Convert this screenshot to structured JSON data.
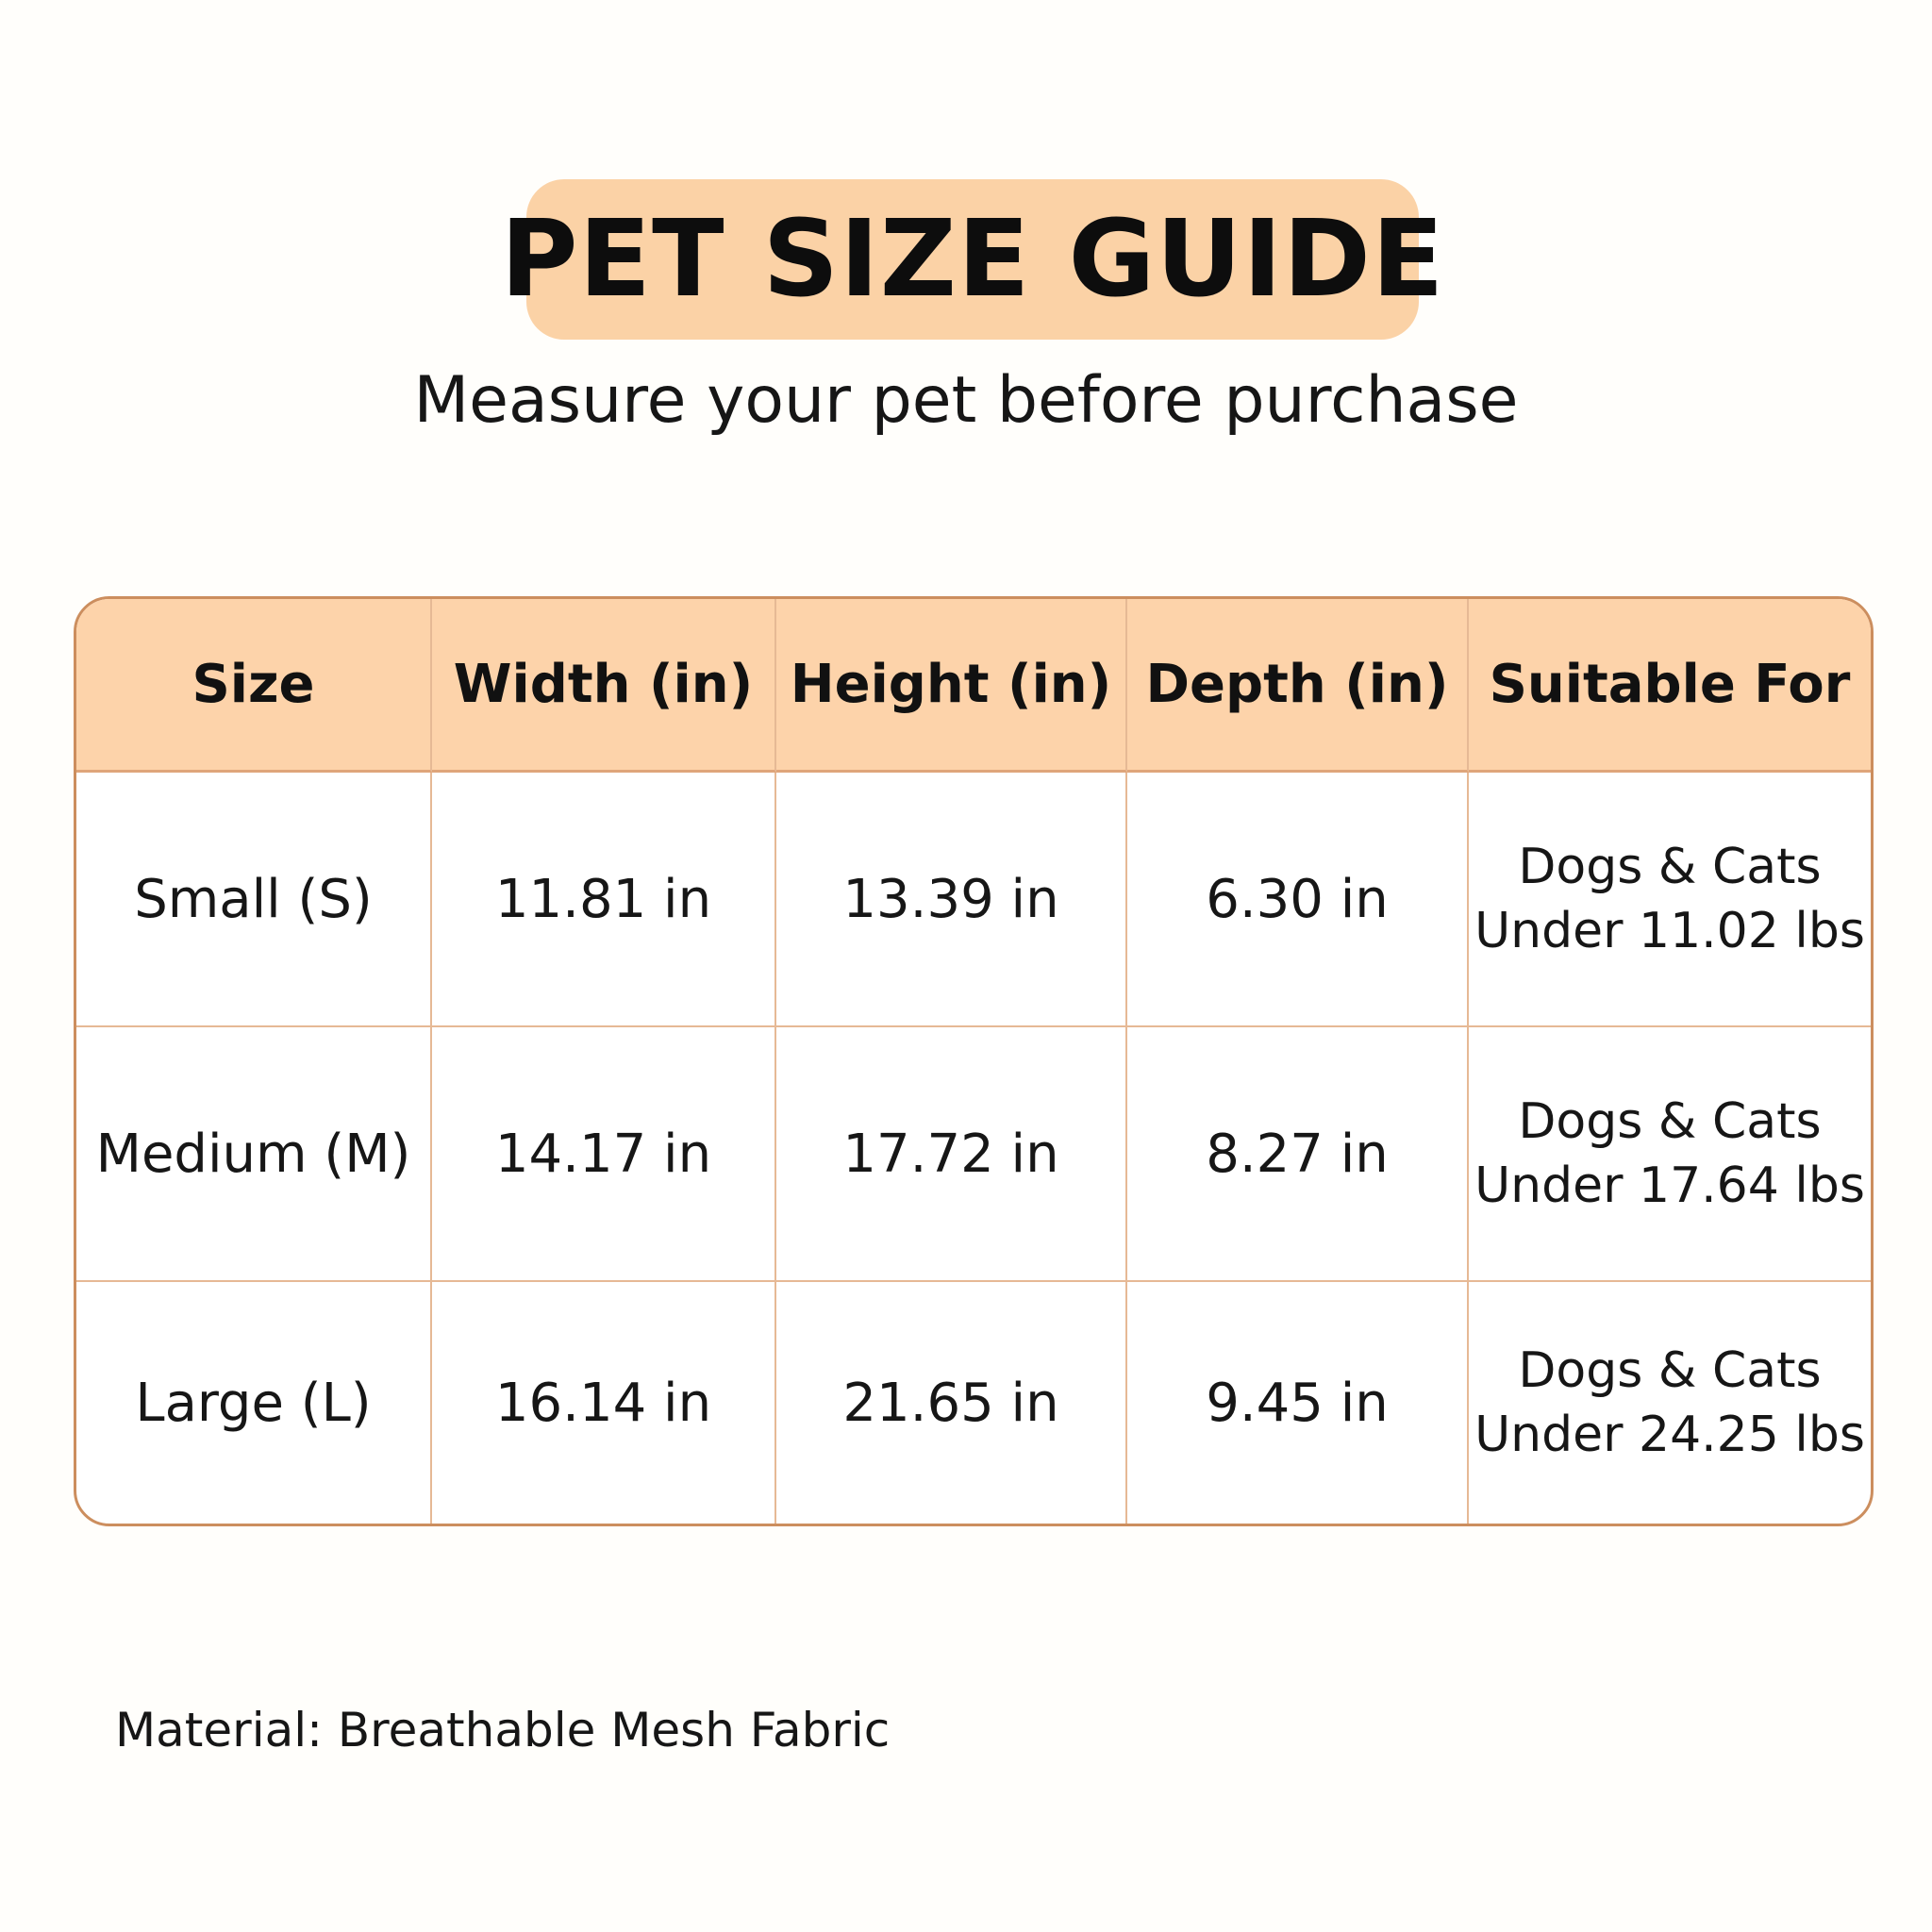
{
  "title": "PET SIZE GUIDE",
  "subtitle": "Measure your pet before purchase",
  "table": {
    "headers": [
      "Size",
      "Width (in)",
      "Height (in)",
      "Depth (in)",
      "Suitable For"
    ],
    "rows": [
      {
        "size": "Small (S)",
        "width": "11.81 in",
        "height": "13.39 in",
        "depth": "6.30 in",
        "suitable_line1": "Dogs & Cats",
        "suitable_line2": "Under 11.02 lbs"
      },
      {
        "size": "Medium (M)",
        "width": "14.17 in",
        "height": "17.72 in",
        "depth": "8.27 in",
        "suitable_line1": "Dogs & Cats",
        "suitable_line2": "Under 17.64 lbs"
      },
      {
        "size": "Large (L)",
        "width": "16.14 in",
        "height": "21.65 in",
        "depth": "9.45 in",
        "suitable_line1": "Dogs & Cats",
        "suitable_line2": "Under 24.25 lbs"
      }
    ]
  },
  "material": "Material: Breathable Mesh Fabric",
  "colors": {
    "background": "#fffefb",
    "accent_peach": "#fbd2a6",
    "border_brown": "#cc8e5e",
    "text": "#141414"
  }
}
